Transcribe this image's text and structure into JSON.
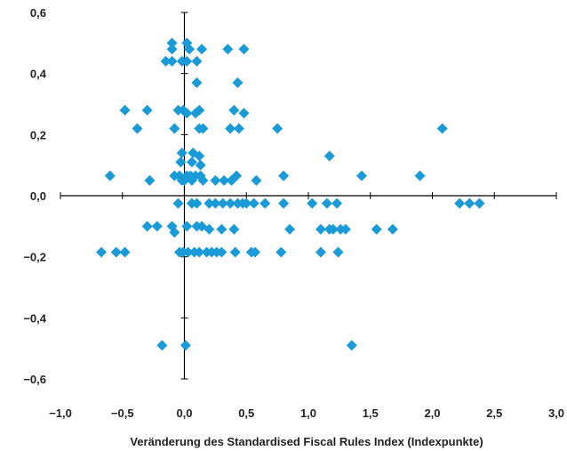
{
  "chart_data": {
    "type": "scatter",
    "title": "",
    "xlabel": "Veränderung des Standardised Fiscal Rules Index (Indexpunkte)",
    "ylabel": "",
    "xlim": [
      -1.0,
      3.0
    ],
    "ylim": [
      -0.6,
      0.6
    ],
    "x_ticks": [
      "−1,0",
      "−0,5",
      "0,0",
      "0,5",
      "1,0",
      "1,5",
      "2,0",
      "2,5",
      "3,0"
    ],
    "y_ticks": [
      "0,6",
      "0,4",
      "0,2",
      "0,0",
      "−0,2",
      "−0,4",
      "−0,6"
    ],
    "grid": false,
    "marker_color": "#1a9ad6",
    "marker": "diamond",
    "points": [
      [
        -0.1,
        0.5
      ],
      [
        -0.1,
        0.48
      ],
      [
        -0.15,
        0.44
      ],
      [
        -0.1,
        0.44
      ],
      [
        -0.02,
        0.44
      ],
      [
        0.02,
        0.5
      ],
      [
        0.04,
        0.48
      ],
      [
        0.02,
        0.44
      ],
      [
        0.1,
        0.44
      ],
      [
        0.14,
        0.48
      ],
      [
        0.35,
        0.48
      ],
      [
        0.48,
        0.48
      ],
      [
        0.1,
        0.37
      ],
      [
        0.43,
        0.37
      ],
      [
        -0.48,
        0.28
      ],
      [
        -0.3,
        0.28
      ],
      [
        -0.05,
        0.28
      ],
      [
        -0.01,
        0.28
      ],
      [
        0.02,
        0.27
      ],
      [
        0.09,
        0.27
      ],
      [
        0.12,
        0.28
      ],
      [
        0.4,
        0.28
      ],
      [
        0.48,
        0.27
      ],
      [
        -0.38,
        0.22
      ],
      [
        -0.08,
        0.22
      ],
      [
        0.12,
        0.22
      ],
      [
        0.15,
        0.22
      ],
      [
        0.37,
        0.22
      ],
      [
        0.44,
        0.22
      ],
      [
        0.75,
        0.22
      ],
      [
        2.08,
        0.22
      ],
      [
        -0.02,
        0.14
      ],
      [
        0.07,
        0.14
      ],
      [
        0.12,
        0.13
      ],
      [
        1.17,
        0.13
      ],
      [
        -0.03,
        0.11
      ],
      [
        0.06,
        0.11
      ],
      [
        0.13,
        0.1
      ],
      [
        -0.6,
        0.065
      ],
      [
        -0.08,
        0.065
      ],
      [
        -0.04,
        0.065
      ],
      [
        -0.02,
        0.05
      ],
      [
        0.02,
        0.065
      ],
      [
        0.05,
        0.065
      ],
      [
        0.09,
        0.065
      ],
      [
        0.13,
        0.065
      ],
      [
        0.42,
        0.065
      ],
      [
        0.8,
        0.065
      ],
      [
        1.43,
        0.065
      ],
      [
        1.9,
        0.065
      ],
      [
        -0.28,
        0.05
      ],
      [
        0.0,
        0.05
      ],
      [
        0.06,
        0.05
      ],
      [
        0.15,
        0.05
      ],
      [
        0.25,
        0.05
      ],
      [
        0.32,
        0.05
      ],
      [
        0.38,
        0.05
      ],
      [
        0.58,
        0.05
      ],
      [
        -0.05,
        -0.025
      ],
      [
        0.06,
        -0.025
      ],
      [
        0.1,
        -0.025
      ],
      [
        0.2,
        -0.025
      ],
      [
        0.25,
        -0.025
      ],
      [
        0.31,
        -0.025
      ],
      [
        0.37,
        -0.025
      ],
      [
        0.43,
        -0.025
      ],
      [
        0.47,
        -0.025
      ],
      [
        0.5,
        -0.025
      ],
      [
        0.56,
        -0.025
      ],
      [
        0.65,
        -0.025
      ],
      [
        0.8,
        -0.025
      ],
      [
        1.03,
        -0.025
      ],
      [
        1.15,
        -0.025
      ],
      [
        1.23,
        -0.025
      ],
      [
        2.22,
        -0.025
      ],
      [
        2.3,
        -0.025
      ],
      [
        2.38,
        -0.025
      ],
      [
        -0.3,
        -0.1
      ],
      [
        -0.22,
        -0.1
      ],
      [
        -0.1,
        -0.1
      ],
      [
        -0.08,
        -0.12
      ],
      [
        0.02,
        -0.1
      ],
      [
        0.1,
        -0.1
      ],
      [
        0.14,
        -0.1
      ],
      [
        0.2,
        -0.11
      ],
      [
        0.3,
        -0.11
      ],
      [
        0.4,
        -0.11
      ],
      [
        0.85,
        -0.11
      ],
      [
        1.1,
        -0.11
      ],
      [
        1.17,
        -0.11
      ],
      [
        1.2,
        -0.11
      ],
      [
        1.26,
        -0.11
      ],
      [
        1.3,
        -0.11
      ],
      [
        1.55,
        -0.11
      ],
      [
        1.68,
        -0.11
      ],
      [
        -0.67,
        -0.185
      ],
      [
        -0.55,
        -0.185
      ],
      [
        -0.48,
        -0.185
      ],
      [
        -0.04,
        -0.185
      ],
      [
        -0.01,
        -0.185
      ],
      [
        0.03,
        -0.185
      ],
      [
        0.08,
        -0.185
      ],
      [
        0.12,
        -0.185
      ],
      [
        0.18,
        -0.185
      ],
      [
        0.22,
        -0.185
      ],
      [
        0.26,
        -0.185
      ],
      [
        0.3,
        -0.185
      ],
      [
        0.41,
        -0.185
      ],
      [
        0.54,
        -0.185
      ],
      [
        0.57,
        -0.185
      ],
      [
        0.78,
        -0.185
      ],
      [
        1.1,
        -0.185
      ],
      [
        1.24,
        -0.185
      ],
      [
        -0.18,
        -0.49
      ],
      [
        0.01,
        -0.49
      ],
      [
        1.35,
        -0.49
      ]
    ]
  }
}
